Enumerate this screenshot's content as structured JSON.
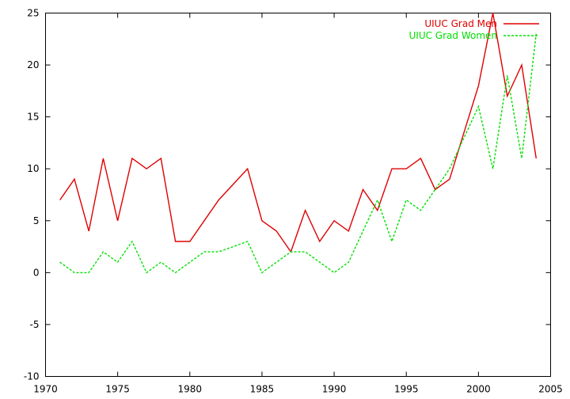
{
  "chart_data": {
    "type": "line",
    "title": "",
    "xlabel": "",
    "ylabel": "",
    "xlim": [
      1970,
      2005
    ],
    "ylim": [
      -10,
      25
    ],
    "x_ticks": [
      1970,
      1975,
      1980,
      1985,
      1990,
      1995,
      2000,
      2005
    ],
    "y_ticks": [
      -10,
      -5,
      0,
      5,
      10,
      15,
      20,
      25
    ],
    "x_tick_labels": [
      "1970",
      "1975",
      "1980",
      "1985",
      "1990",
      "1995",
      "2000",
      "2005"
    ],
    "y_tick_labels": [
      "-10",
      "-5",
      "0",
      "5",
      "10",
      "15",
      "20",
      "25"
    ],
    "grid": false,
    "legend_position": "top-right",
    "x": [
      1971,
      1972,
      1973,
      1974,
      1975,
      1976,
      1977,
      1978,
      1979,
      1980,
      1981,
      1982,
      1983,
      1984,
      1985,
      1986,
      1987,
      1988,
      1989,
      1990,
      1991,
      1992,
      1993,
      1994,
      1995,
      1996,
      1997,
      1998,
      1999,
      2000,
      2001,
      2002,
      2003,
      2004
    ],
    "series": [
      {
        "name": "UIUC Grad Men",
        "color": "#e00000",
        "dash": "solid",
        "values": [
          7,
          9,
          4,
          11,
          5,
          11,
          10,
          11,
          3,
          3,
          5,
          7,
          8.5,
          10,
          5,
          4,
          2,
          6,
          3,
          5,
          4,
          8,
          6,
          10,
          10,
          11,
          8,
          9,
          13.5,
          18,
          25,
          17,
          20,
          11
        ]
      },
      {
        "name": "UIUC Grad Women",
        "color": "#00e000",
        "dash": "dashed",
        "values": [
          1,
          0,
          0,
          2,
          1,
          3,
          0,
          1,
          0,
          1,
          2,
          2,
          2.5,
          3,
          0,
          1,
          2,
          2,
          1,
          0,
          1,
          4,
          7,
          3,
          7,
          6,
          8,
          10,
          13,
          16,
          10,
          19,
          11,
          23
        ]
      }
    ]
  }
}
